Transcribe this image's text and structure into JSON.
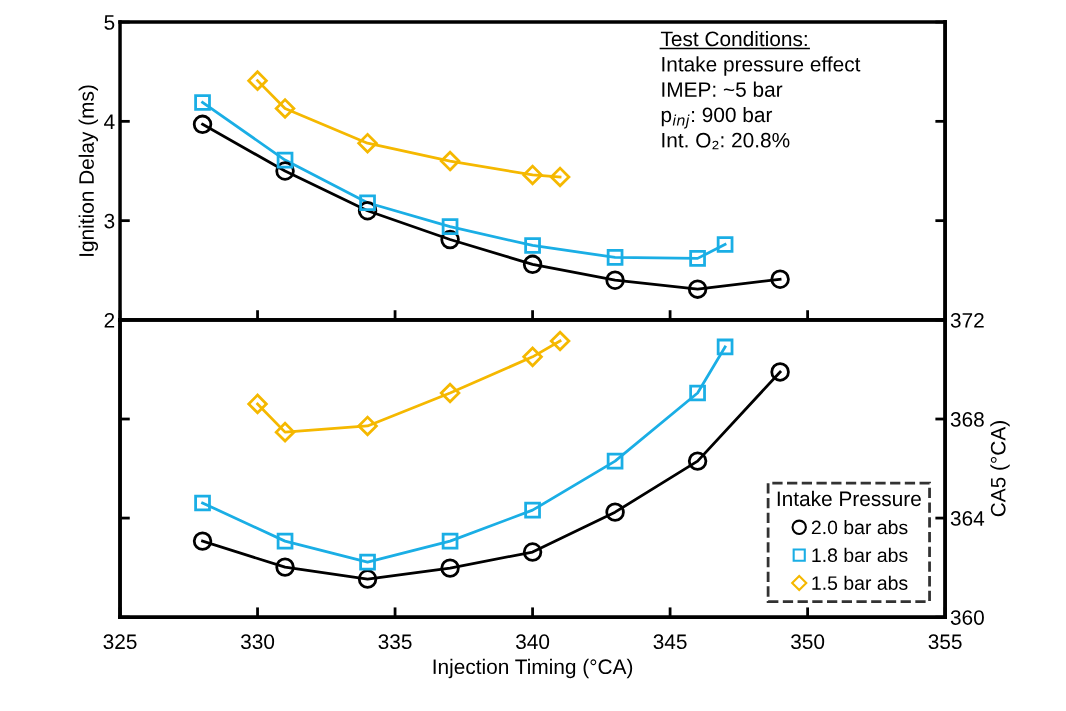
{
  "chart_data": [
    {
      "type": "line",
      "ylabel": "Ignition Delay (ms)",
      "xlim": [
        325,
        355
      ],
      "xticks": [
        325,
        330,
        335,
        340,
        345,
        350,
        355
      ],
      "ylim": [
        2,
        5
      ],
      "yticks": [
        2,
        3,
        4,
        5
      ],
      "tick_labels": "y",
      "grid": false,
      "legend": false,
      "line_style": "solid",
      "annotations": [
        "Test Conditions:",
        "Intake pressure effect",
        "IMEP: ~5 bar",
        "p$_{inj}$: 900 bar",
        "Int. O₂: 20.8%"
      ],
      "series": [
        {
          "color": "#000000",
          "marker": "circle",
          "x": [
            328,
            331,
            334,
            337,
            340,
            343,
            346,
            349
          ],
          "values": [
            3.97,
            3.5,
            3.1,
            2.81,
            2.56,
            2.4,
            2.31,
            2.41
          ]
        },
        {
          "color": "#1aaee5",
          "marker": "square",
          "x": [
            328,
            331,
            334,
            337,
            340,
            343,
            346,
            347
          ],
          "values": [
            4.19,
            3.61,
            3.18,
            2.94,
            2.75,
            2.63,
            2.62,
            2.76
          ]
        },
        {
          "color": "#f5b800",
          "marker": "diamond",
          "x": [
            330,
            331,
            334,
            337,
            340,
            341
          ],
          "values": [
            4.41,
            4.13,
            3.78,
            3.6,
            3.46,
            3.44
          ]
        }
      ]
    },
    {
      "type": "line",
      "xlabel": "Injection Timing (°CA)",
      "y2label": "CA5 (°CA)",
      "xlim": [
        325,
        355
      ],
      "xticks": [
        325,
        330,
        335,
        340,
        345,
        350,
        355
      ],
      "y2lim": [
        360,
        372
      ],
      "y2ticks": [
        360,
        364,
        368,
        372
      ],
      "grid": false,
      "legend": "bottom right",
      "legend_title": "Intake Pressure",
      "line_style": "solid",
      "series": [
        {
          "name": "2.0 bar abs",
          "color": "#000000",
          "marker": "circle",
          "axis": "y2",
          "x": [
            328,
            331,
            334,
            337,
            340,
            343,
            346,
            349
          ],
          "values": [
            363.07,
            362.02,
            361.54,
            361.98,
            362.63,
            364.24,
            366.3,
            369.9
          ]
        },
        {
          "name": "1.8 bar abs",
          "color": "#1aaee5",
          "marker": "square",
          "axis": "y2",
          "x": [
            328,
            331,
            334,
            337,
            340,
            343,
            346,
            347
          ],
          "values": [
            364.61,
            363.07,
            362.22,
            363.07,
            364.32,
            366.3,
            369.05,
            370.91
          ]
        },
        {
          "name": "1.5 bar abs",
          "color": "#f5b800",
          "marker": "diamond",
          "axis": "y2",
          "x": [
            330,
            331,
            334,
            337,
            340,
            341
          ],
          "values": [
            368.61,
            367.47,
            367.72,
            369.05,
            370.51,
            371.15
          ]
        }
      ]
    }
  ]
}
